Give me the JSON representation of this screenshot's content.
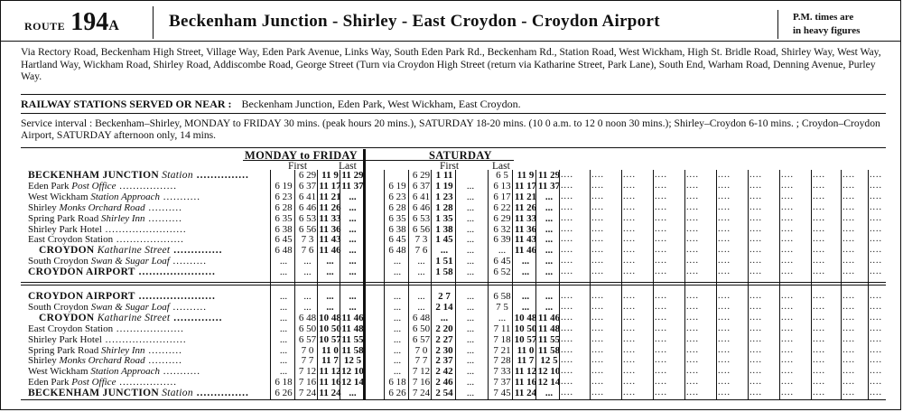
{
  "header": {
    "route_word": "ROUTE",
    "route_number": "194",
    "route_suffix": "A",
    "title": "Beckenham Junction - Shirley - East Croydon - Croydon Airport",
    "pm_note_line1": "P.M. times are",
    "pm_note_line2": "in heavy figures"
  },
  "via": "Via Rectory Road, Beckenham High Street, Village Way, Eden Park Avenue, Links Way, South Eden Park Rd., Beckenham Rd., Station Road, West Wickham, High St. Bridle Road, Shirley Way, West Way, Hartland Way, Wickham Road, Shirley Road, Addiscombe Road, George Street (Turn via Croydon High Street (return via Katharine Street, Park Lane), South End, Warham Road, Denning Avenue, Purley Way.",
  "railway": {
    "label": "RAILWAY STATIONS SERVED OR NEAR :",
    "stations": "Beckenham Junction, Eden Park, West Wickham, East Croydon."
  },
  "service": "Service interval : Beckenham–Shirley, MONDAY to FRIDAY 30 mins. (peak hours 20 mins.), SATURDAY 18-20 mins. (10 0 a.m. to 12 0 noon 30 mins.); Shirley–Croydon 6-10 mins. ; Croydon–Croydon Airport, SATURDAY afternoon only, 14 mins.",
  "timetable": {
    "headers": {
      "mf": "MONDAY to FRIDAY",
      "sat": "SATURDAY",
      "mf_first": "First",
      "mf_last": "Last",
      "sat_first": "First",
      "sat_last": "Last"
    },
    "outbound": [
      {
        "name": "BECKENHAM JUNCTION",
        "suffix": "Station",
        "style": "big",
        "dots": "...............",
        "cells": [
          "",
          "6 29",
          "11 9",
          "11 29",
          "",
          "6 29",
          "1 11",
          "",
          "6 5",
          "11 9",
          "11 29"
        ]
      },
      {
        "name": "Eden Park",
        "suffix": "Post Office",
        "style": "",
        "dots": ".................",
        "cells": [
          "6 19",
          "6 37",
          "11 17",
          "11 37",
          "6 19",
          "6 37",
          "1 19",
          "...",
          "6 13",
          "11 17",
          "11 37"
        ]
      },
      {
        "name": "West Wickham",
        "suffix": "Station Approach",
        "style": "",
        "dots": "...........",
        "cells": [
          "6 23",
          "6 41",
          "11 21",
          "...",
          "6 23",
          "6 41",
          "1 23",
          "...",
          "6 17",
          "11 21",
          "..."
        ]
      },
      {
        "name": "Shirley",
        "suffix": "Monks Orchard Road",
        "style": "",
        "dots": "..........",
        "cells": [
          "6 28",
          "6 46",
          "11 26",
          "...",
          "6 28",
          "6 46",
          "1 28",
          "...",
          "6 22",
          "11 26",
          "..."
        ]
      },
      {
        "name": "Spring Park Road",
        "suffix": "Shirley Inn",
        "style": "",
        "dots": "..........",
        "cells": [
          "6 35",
          "6 53",
          "11 33",
          "...",
          "6 35",
          "6 53",
          "1 35",
          "...",
          "6 29",
          "11 33",
          "..."
        ]
      },
      {
        "name": "Shirley Park Hotel",
        "suffix": "",
        "style": "",
        "dots": "........................",
        "cells": [
          "6 38",
          "6 56",
          "11 36",
          "...",
          "6 38",
          "6 56",
          "1 38",
          "...",
          "6 32",
          "11 36",
          "..."
        ]
      },
      {
        "name": "East Croydon Station",
        "suffix": "",
        "style": "",
        "dots": "....................",
        "cells": [
          "6 45",
          "7 3",
          "11 43",
          "...",
          "6 45",
          "7 3",
          "1 45",
          "...",
          "6 39",
          "11 43",
          "..."
        ]
      },
      {
        "name": "CROYDON",
        "suffix": "Katharine Street",
        "style": "big ind",
        "dots": "..............",
        "cells": [
          "6 48",
          "7 6",
          "11 46",
          "...",
          "6 48",
          "7 6",
          "...",
          "...",
          "...",
          "11 46",
          "..."
        ]
      },
      {
        "name": "South Croydon",
        "suffix": "Swan & Sugar Loaf",
        "style": "",
        "dots": "..........",
        "cells": [
          "...",
          "...",
          "...",
          "...",
          "...",
          "...",
          "1 51",
          "...",
          "6 45",
          "...",
          "..."
        ]
      },
      {
        "name": "CROYDON AIRPORT",
        "suffix": "",
        "style": "big",
        "dots": "......................",
        "cells": [
          "...",
          "...",
          "...",
          "...",
          "...",
          "...",
          "1 58",
          "...",
          "6 52",
          "...",
          "..."
        ]
      }
    ],
    "inbound": [
      {
        "name": "CROYDON AIRPORT",
        "suffix": "",
        "style": "big",
        "dots": "......................",
        "cells": [
          "...",
          "...",
          "...",
          "...",
          "...",
          "...",
          "2 7",
          "...",
          "6 58",
          "...",
          "..."
        ]
      },
      {
        "name": "South Croydon",
        "suffix": "Swan & Sugar Loaf",
        "style": "",
        "dots": "..........",
        "cells": [
          "...",
          "...",
          "...",
          "...",
          "...",
          "...",
          "2 14",
          "...",
          "7 5",
          "...",
          "..."
        ]
      },
      {
        "name": "CROYDON",
        "suffix": "Katharine Street",
        "style": "big ind",
        "dots": "..............",
        "cells": [
          "...",
          "6 48",
          "10 48",
          "11 46",
          "...",
          "6 48",
          "...",
          "...",
          "...",
          "10 48",
          "11 46"
        ]
      },
      {
        "name": "East Croydon Station",
        "suffix": "",
        "style": "",
        "dots": "....................",
        "cells": [
          "...",
          "6 50",
          "10 50",
          "11 48",
          "...",
          "6 50",
          "2 20",
          "...",
          "7 11",
          "10 50",
          "11 48"
        ]
      },
      {
        "name": "Shirley Park Hotel",
        "suffix": "",
        "style": "",
        "dots": "........................",
        "cells": [
          "...",
          "6 57",
          "10 57",
          "11 55",
          "...",
          "6 57",
          "2 27",
          "...",
          "7 18",
          "10 57",
          "11 55"
        ]
      },
      {
        "name": "Spring Park Road",
        "suffix": "Shirley Inn",
        "style": "",
        "dots": "..........",
        "cells": [
          "...",
          "7 0",
          "11 0",
          "11 58",
          "...",
          "7 0",
          "2 30",
          "...",
          "7 21",
          "11 0",
          "11 58"
        ]
      },
      {
        "name": "Shirley",
        "suffix": "Monks Orchard Road",
        "style": "",
        "dots": "..........",
        "cells": [
          "...",
          "7 7",
          "11 7",
          "12 5",
          "...",
          "7 7",
          "2 37",
          "...",
          "7 28",
          "11 7",
          "12 5"
        ]
      },
      {
        "name": "West Wickham",
        "suffix": "Station Approach",
        "style": "",
        "dots": "...........",
        "cells": [
          "...",
          "7 12",
          "11 12",
          "12 10",
          "...",
          "7 12",
          "2 42",
          "...",
          "7 33",
          "11 12",
          "12 10"
        ]
      },
      {
        "name": "Eden Park",
        "suffix": "Post Office",
        "style": "",
        "dots": ".................",
        "cells": [
          "6 18",
          "7 16",
          "11 16",
          "12 14",
          "6 18",
          "7 16",
          "2 46",
          "...",
          "7 37",
          "11 16",
          "12 14"
        ]
      },
      {
        "name": "BECKENHAM JUNCTION",
        "suffix": "Station",
        "style": "big",
        "dots": "...............",
        "cells": [
          "6 26",
          "7 24",
          "11 24",
          "...",
          "6 26",
          "7 24",
          "2 54",
          "...",
          "7 45",
          "11 24",
          "..."
        ]
      }
    ],
    "bold_cells": [
      2,
      3,
      6,
      9,
      10
    ],
    "blank_mark": "...."
  }
}
